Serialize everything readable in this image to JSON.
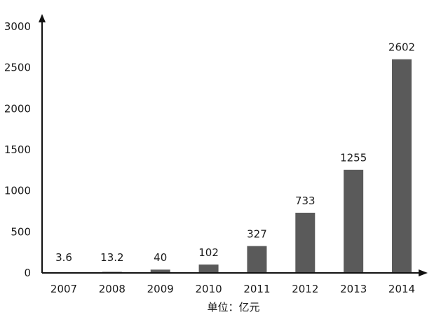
{
  "chart_data": {
    "type": "bar",
    "categories": [
      "2007",
      "2008",
      "2009",
      "2010",
      "2011",
      "2012",
      "2013",
      "2014"
    ],
    "values": [
      3.6,
      13.2,
      40,
      102,
      327,
      733,
      1255,
      2602
    ],
    "value_labels": [
      "3.6",
      "13.2",
      "40",
      "102",
      "327",
      "733",
      "1255",
      "2602"
    ],
    "y_ticks": [
      "0",
      "500",
      "1000",
      "1500",
      "2000",
      "2500",
      "3000"
    ],
    "ylim": [
      0,
      3000
    ],
    "unit_label": "单位：亿元",
    "title": "",
    "xlabel": "",
    "ylabel": "",
    "grid": false,
    "legend": "none",
    "colors": {
      "bar": "#5a5a5a",
      "axis": "#111111",
      "text": "#1a1a1a"
    }
  }
}
